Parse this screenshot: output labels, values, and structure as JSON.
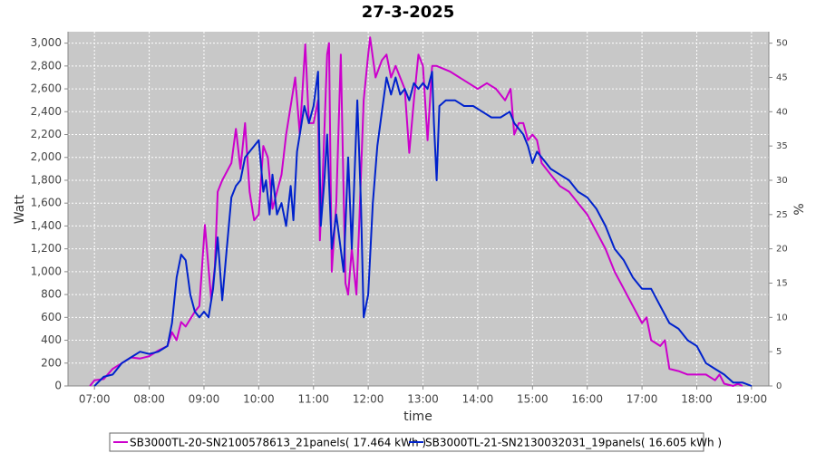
{
  "chart_data": {
    "type": "line",
    "title": "27-3-2025",
    "x_label": "time",
    "y_label": "Watt",
    "y2_label": "%",
    "xlim": [
      "06:31",
      "19:19"
    ],
    "xticks": [
      "07:00",
      "08:00",
      "09:00",
      "10:00",
      "11:00",
      "12:00",
      "13:00",
      "14:00",
      "15:00",
      "16:00",
      "17:00",
      "18:00",
      "19:00"
    ],
    "ylim": [
      0,
      3100
    ],
    "yticks": [
      0,
      200,
      400,
      600,
      800,
      {
        "value": 1000,
        "label": "1,000"
      },
      {
        "value": 1200,
        "label": "1,200"
      },
      {
        "value": 1400,
        "label": "1,400"
      },
      {
        "value": 1600,
        "label": "1,600"
      },
      {
        "value": 1800,
        "label": "1,800"
      },
      {
        "value": 2000,
        "label": "2,000"
      },
      {
        "value": 2200,
        "label": "2,200"
      },
      {
        "value": 2400,
        "label": "2,400"
      },
      {
        "value": 2600,
        "label": "2,600"
      },
      {
        "value": 2800,
        "label": "2,800"
      },
      {
        "value": 3000,
        "label": "3,000"
      }
    ],
    "y2lim": [
      0,
      51.67
    ],
    "y2ticks": [
      0,
      5,
      10,
      15,
      20,
      25,
      30,
      35,
      40,
      45,
      50
    ],
    "grid": true,
    "legend": "bottom",
    "series": [
      {
        "name": "SB3000TL-20-SN2100578613_21panels( 17.464 kWh )",
        "color": "#cc00cc",
        "x": [
          "06:55",
          "07:00",
          "07:10",
          "07:20",
          "07:30",
          "07:40",
          "07:50",
          "08:00",
          "08:10",
          "08:20",
          "08:25",
          "08:30",
          "08:35",
          "08:40",
          "08:50",
          "08:55",
          "09:01",
          "09:08",
          "09:12",
          "09:15",
          "09:20",
          "09:30",
          "09:35",
          "09:40",
          "09:45",
          "09:50",
          "09:55",
          "10:00",
          "10:05",
          "10:10",
          "10:15",
          "10:20",
          "10:25",
          "10:30",
          "10:35",
          "10:40",
          "10:45",
          "10:51",
          "10:55",
          "11:00",
          "11:05",
          "11:07",
          "11:10",
          "11:15",
          "11:17",
          "11:20",
          "11:25",
          "11:30",
          "11:35",
          "11:38",
          "11:42",
          "11:47",
          "11:50",
          "11:55",
          "12:00",
          "12:02",
          "12:08",
          "12:15",
          "12:20",
          "12:25",
          "12:30",
          "12:40",
          "12:45",
          "12:50",
          "12:55",
          "13:00",
          "13:05",
          "13:10",
          "13:15",
          "13:30",
          "13:40",
          "13:50",
          "14:00",
          "14:10",
          "14:20",
          "14:30",
          "14:36",
          "14:40",
          "14:45",
          "14:50",
          "14:55",
          "15:00",
          "15:05",
          "15:10",
          "15:20",
          "15:30",
          "15:40",
          "15:50",
          "16:00",
          "16:10",
          "16:20",
          "16:30",
          "16:40",
          "16:50",
          "17:00",
          "17:05",
          "17:10",
          "17:20",
          "17:25",
          "17:30",
          "17:40",
          "17:50",
          "18:00",
          "18:10",
          "18:20",
          "18:25",
          "18:30",
          "18:40",
          "18:45",
          "18:50"
        ],
        "values": [
          0,
          50,
          60,
          150,
          200,
          250,
          240,
          260,
          310,
          350,
          470,
          400,
          560,
          520,
          650,
          700,
          1410,
          750,
          1050,
          1700,
          1800,
          1950,
          2250,
          1900,
          2300,
          1700,
          1450,
          1500,
          2100,
          2000,
          1550,
          1700,
          1850,
          2200,
          2450,
          2700,
          2200,
          2990,
          2300,
          2300,
          2500,
          1275,
          1800,
          2900,
          3000,
          1000,
          1600,
          2900,
          900,
          800,
          1200,
          800,
          1400,
          2500,
          2900,
          3050,
          2700,
          2850,
          2900,
          2700,
          2800,
          2600,
          2040,
          2500,
          2900,
          2800,
          2150,
          2800,
          2800,
          2750,
          2700,
          2650,
          2600,
          2650,
          2600,
          2500,
          2600,
          2200,
          2300,
          2300,
          2150,
          2200,
          2150,
          1950,
          1850,
          1750,
          1700,
          1600,
          1500,
          1350,
          1200,
          1000,
          850,
          700,
          550,
          600,
          400,
          350,
          400,
          150,
          130,
          100,
          100,
          100,
          50,
          100,
          20,
          0,
          20,
          0
        ]
      },
      {
        "name": "SB3000TL-21-SN2130032031_19panels( 16.605 kWh )",
        "color": "#0022cc",
        "x": [
          "07:00",
          "07:10",
          "07:20",
          "07:30",
          "07:40",
          "07:50",
          "08:00",
          "08:10",
          "08:20",
          "08:25",
          "08:30",
          "08:35",
          "08:40",
          "08:45",
          "08:50",
          "08:55",
          "09:00",
          "09:05",
          "09:10",
          "09:15",
          "09:20",
          "09:25",
          "09:30",
          "09:35",
          "09:40",
          "09:45",
          "09:50",
          "09:55",
          "10:00",
          "10:05",
          "10:08",
          "10:12",
          "10:15",
          "10:20",
          "10:25",
          "10:30",
          "10:35",
          "10:38",
          "10:42",
          "10:50",
          "10:55",
          "11:00",
          "11:05",
          "11:08",
          "11:12",
          "11:15",
          "11:20",
          "11:25",
          "11:33",
          "11:38",
          "11:42",
          "11:48",
          "11:52",
          "11:55",
          "12:00",
          "12:05",
          "12:10",
          "12:15",
          "12:20",
          "12:25",
          "12:30",
          "12:35",
          "12:40",
          "12:45",
          "12:50",
          "12:55",
          "13:00",
          "13:05",
          "13:10",
          "13:12",
          "13:15",
          "13:18",
          "13:25",
          "13:35",
          "13:45",
          "13:55",
          "14:05",
          "14:15",
          "14:25",
          "14:35",
          "14:40",
          "14:50",
          "14:55",
          "15:00",
          "15:05",
          "15:10",
          "15:15",
          "15:20",
          "15:30",
          "15:40",
          "15:50",
          "16:00",
          "16:10",
          "16:20",
          "16:30",
          "16:40",
          "16:50",
          "17:00",
          "17:10",
          "17:20",
          "17:30",
          "17:40",
          "17:50",
          "18:00",
          "18:10",
          "18:20",
          "18:30",
          "18:40",
          "18:50",
          "19:00"
        ],
        "values": [
          0,
          80,
          100,
          200,
          250,
          300,
          280,
          300,
          350,
          550,
          950,
          1150,
          1100,
          800,
          650,
          600,
          650,
          600,
          850,
          1300,
          750,
          1200,
          1650,
          1750,
          1800,
          2000,
          2050,
          2100,
          2150,
          1700,
          1800,
          1500,
          1850,
          1500,
          1600,
          1400,
          1750,
          1450,
          2050,
          2450,
          2300,
          2450,
          2750,
          1400,
          1800,
          2200,
          1200,
          1500,
          1000,
          2000,
          1200,
          2500,
          1600,
          600,
          800,
          1600,
          2100,
          2400,
          2700,
          2550,
          2700,
          2550,
          2600,
          2500,
          2650,
          2600,
          2650,
          2600,
          2750,
          2300,
          1800,
          2450,
          2500,
          2500,
          2450,
          2450,
          2400,
          2350,
          2350,
          2400,
          2300,
          2200,
          2100,
          1950,
          2050,
          2000,
          1950,
          1900,
          1850,
          1800,
          1700,
          1650,
          1550,
          1400,
          1200,
          1100,
          950,
          850,
          850,
          700,
          550,
          500,
          400,
          350,
          200,
          150,
          100,
          30,
          30,
          0
        ]
      }
    ]
  }
}
